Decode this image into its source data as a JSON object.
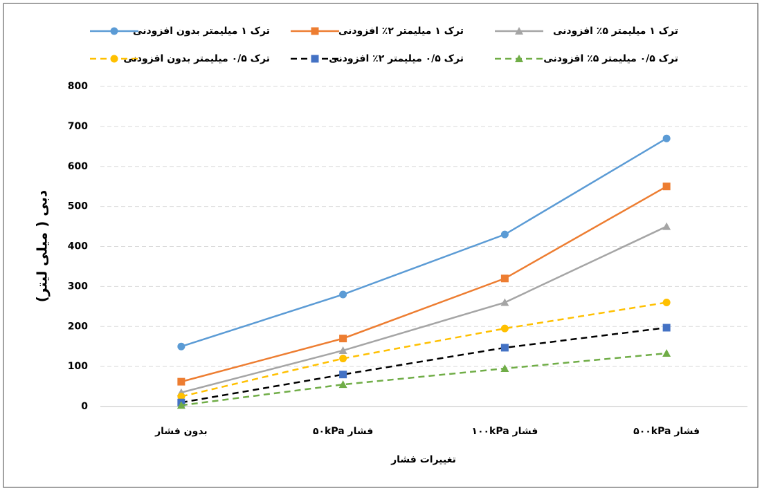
{
  "chart_data": {
    "type": "line",
    "x_label": "تغییرات فشار",
    "y_label": "دبی ( میلی لیتر)",
    "categories": [
      "بدون فشار",
      "فشار ۵۰kPa",
      "فشار ۱۰۰kPa",
      "فشار ۵۰۰kPa"
    ],
    "series": [
      {
        "name": "ترک ۱ میلیمتر بدون افزودنی",
        "color": "#5b9bd5",
        "marker": "circle",
        "dashed": false,
        "values": [
          150,
          280,
          430,
          670
        ]
      },
      {
        "name": "ترک ۱ میلیمتر ۲٪ افزودنی",
        "color": "#ed7d31",
        "marker": "square",
        "dashed": false,
        "values": [
          62,
          170,
          320,
          550
        ]
      },
      {
        "name": "ترک ۱ میلیمتر ۵٪ افزودنی",
        "color": "#a5a5a5",
        "marker": "triangle",
        "dashed": false,
        "values": [
          35,
          140,
          260,
          450
        ]
      },
      {
        "name": "ترک ۰/۵ میلیمتر بدون افزودنی",
        "color": "#ffc000",
        "marker": "circle",
        "dashed": true,
        "values": [
          25,
          120,
          195,
          260
        ]
      },
      {
        "name": "ترک ۰/۵ میلیمتر ۲٪ افزودنی",
        "color": "#000000",
        "marker_color": "#4472c4",
        "marker": "square",
        "dashed": true,
        "values": [
          10,
          80,
          147,
          197
        ]
      },
      {
        "name": "ترک ۰/۵ میلیمتر ۵٪ افزودنی",
        "color": "#70ad47",
        "marker": "triangle",
        "dashed": true,
        "values": [
          3,
          55,
          95,
          133
        ]
      }
    ],
    "ylim": [
      0,
      800
    ],
    "yticks": [
      0,
      100,
      200,
      300,
      400,
      500,
      600,
      700,
      800
    ],
    "grid": true,
    "legend": "top"
  }
}
